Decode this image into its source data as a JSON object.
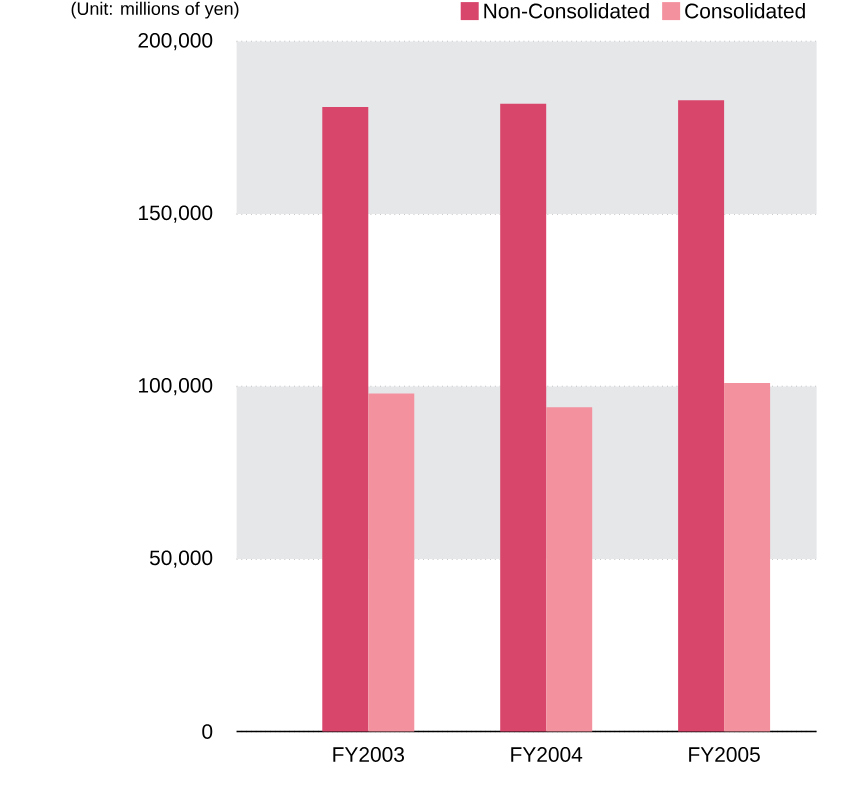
{
  "chart_data": {
    "type": "bar",
    "annotations": [
      "(Unit: millions of yen)"
    ],
    "categories": [
      "FY2003",
      "FY2004",
      "FY2005"
    ],
    "series": [
      {
        "name": "Non-Consolidated",
        "color": "#d9466c",
        "values": [
          181000,
          182000,
          183000
        ]
      },
      {
        "name": "Consolidated",
        "color": "#f3919f",
        "values": [
          98000,
          94000,
          101000
        ]
      }
    ],
    "ylim": [
      0,
      200000
    ],
    "yticks": [
      0,
      {
        "value": 50000,
        "label": "50,000"
      },
      {
        "value": 100000,
        "label": "100,000"
      },
      {
        "value": 150000,
        "label": "150,000"
      },
      {
        "value": 200000,
        "label": "200,000"
      }
    ],
    "bands": [
      {
        "axis": "y",
        "from": 50000,
        "to": 100000,
        "color": "#e6e7e9"
      },
      {
        "axis": "y",
        "from": 150000,
        "to": 200000,
        "color": "#e6e7e9"
      }
    ],
    "grid": "y",
    "legend": "top right"
  }
}
